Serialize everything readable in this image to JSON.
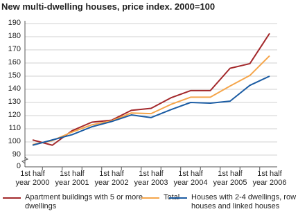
{
  "chart_data": {
    "type": "line",
    "title": "New multi-dwelling houses, price index. 2000=100",
    "categories": [
      "1st half year 2000",
      null,
      "1st half year 2001",
      null,
      "1st half year 2002",
      null,
      "1st half year 2003",
      null,
      "1st half year 2004",
      null,
      "1st half year 2005",
      null,
      "1st half year 2006"
    ],
    "series": [
      {
        "name": "Apartment buildings with 5 or more dwellings",
        "color": "#a3282b",
        "values": [
          101.5,
          97.5,
          108.5,
          115,
          116.5,
          124,
          125.5,
          133.5,
          139,
          139,
          156,
          159.5,
          182.5
        ]
      },
      {
        "name": "Total",
        "color": "#f5a54a",
        "values": [
          98,
          101,
          107.5,
          113,
          116,
          122,
          121.5,
          128.5,
          134,
          134,
          142.5,
          150.5,
          165.5
        ]
      },
      {
        "name": "Houses with 2-4 dwellings, row houses and linked houses",
        "color": "#1b5ca3",
        "values": [
          97.5,
          101.5,
          105.5,
          111.5,
          115.5,
          120.5,
          118.5,
          124.5,
          130,
          129.5,
          131,
          143,
          150
        ]
      }
    ],
    "ylim": [
      0,
      190
    ],
    "axis_break": [
      0,
      90
    ],
    "yticks": [
      0,
      90,
      100,
      110,
      120,
      130,
      140,
      150,
      160,
      170,
      180,
      190
    ],
    "grid": true
  }
}
